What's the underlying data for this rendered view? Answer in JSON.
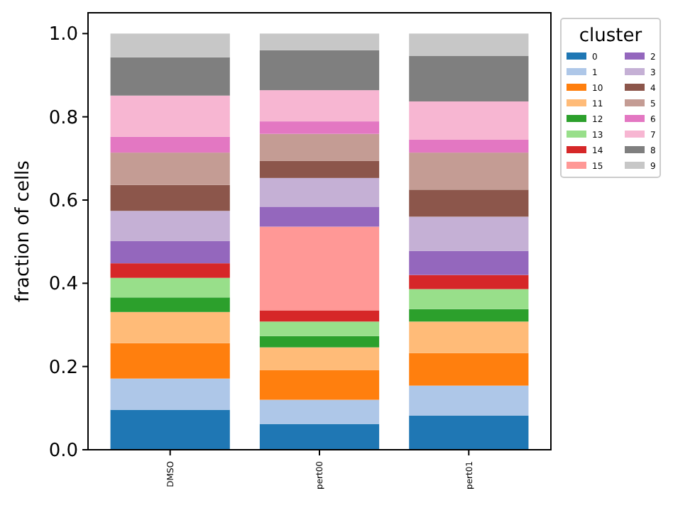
{
  "chart_data": {
    "type": "bar",
    "stacked": true,
    "ylabel": "fraction of cells",
    "legend_title": "cluster",
    "legend": "right",
    "categories": [
      "DMSO",
      "pert00",
      "pert01"
    ],
    "ylim": [
      0,
      1.05
    ],
    "yticks": [
      {
        "value": 0,
        "label": "0.0"
      },
      {
        "value": 0.2,
        "label": "0.2"
      },
      {
        "value": 0.4,
        "label": "0.4"
      },
      {
        "value": 0.6,
        "label": "0.6"
      },
      {
        "value": 0.8,
        "label": "0.8"
      },
      {
        "value": 1,
        "label": "1.0"
      }
    ],
    "grid": false,
    "series": [
      {
        "name": "0",
        "color": "#1f77b4",
        "values": [
          0.096,
          0.062,
          0.082
        ]
      },
      {
        "name": "1",
        "color": "#aec7e8",
        "values": [
          0.075,
          0.058,
          0.072
        ]
      },
      {
        "name": "10",
        "color": "#ff7f0e",
        "values": [
          0.085,
          0.071,
          0.078
        ]
      },
      {
        "name": "11",
        "color": "#ffbb78",
        "values": [
          0.075,
          0.055,
          0.076
        ]
      },
      {
        "name": "12",
        "color": "#2ca02c",
        "values": [
          0.035,
          0.027,
          0.03
        ]
      },
      {
        "name": "13",
        "color": "#98df8a",
        "values": [
          0.047,
          0.035,
          0.048
        ]
      },
      {
        "name": "14",
        "color": "#d62728",
        "values": [
          0.035,
          0.027,
          0.034
        ]
      },
      {
        "name": "15",
        "color": "#ff9896",
        "values": [
          0,
          0.201,
          0
        ]
      },
      {
        "name": "2",
        "color": "#9467bd",
        "values": [
          0.054,
          0.048,
          0.058
        ]
      },
      {
        "name": "3",
        "color": "#c5b0d5",
        "values": [
          0.072,
          0.069,
          0.082
        ]
      },
      {
        "name": "4",
        "color": "#8c564b",
        "values": [
          0.062,
          0.041,
          0.065
        ]
      },
      {
        "name": "5",
        "color": "#c49c94",
        "values": [
          0.078,
          0.065,
          0.089
        ]
      },
      {
        "name": "6",
        "color": "#e377c2",
        "values": [
          0.038,
          0.03,
          0.031
        ]
      },
      {
        "name": "7",
        "color": "#f7b6d2",
        "values": [
          0.099,
          0.075,
          0.092
        ]
      },
      {
        "name": "8",
        "color": "#7f7f7f",
        "values": [
          0.092,
          0.096,
          0.109
        ]
      },
      {
        "name": "9",
        "color": "#c7c7c7",
        "values": [
          0.057,
          0.04,
          0.054
        ]
      }
    ]
  }
}
